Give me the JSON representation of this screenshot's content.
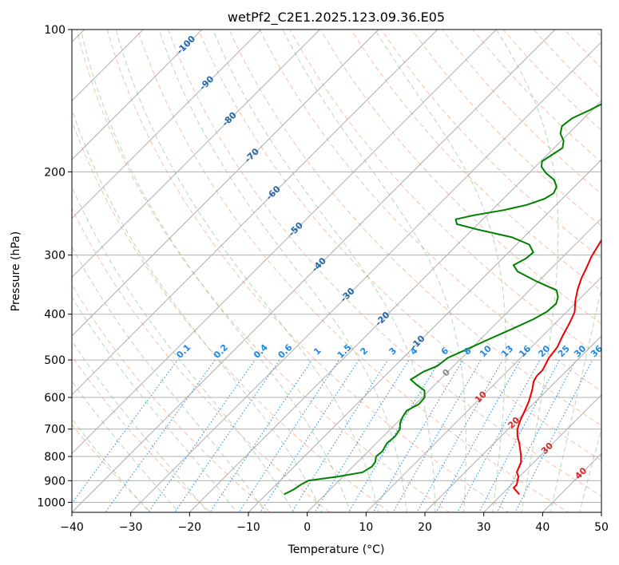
{
  "chart_data": {
    "type": "line",
    "title": "wetPf2_C2E1.2025.123.09.36.E05",
    "xlabel": "Temperature (°C)",
    "ylabel": "Pressure (hPa)",
    "xlim": [
      -40,
      50
    ],
    "ylim": [
      1050,
      100
    ],
    "y_scale": "log",
    "grid": true,
    "x_ticks": [
      "−40",
      "−30",
      "−20",
      "−10",
      "0",
      "10",
      "20",
      "30",
      "40",
      "50"
    ],
    "y_ticks": [
      "100",
      "200",
      "300",
      "400",
      "500",
      "600",
      "700",
      "800",
      "900",
      "1000"
    ],
    "colors": {
      "temperature": "#ee0000",
      "dewpoint": "#008000",
      "isotherm_grid": "#9a9a9a",
      "dry_adiabat": "#f4a582",
      "moist_adiabat": "#7fbf7f",
      "mixing_ratio": "#1e88e5",
      "isotherm_label": "#2166ac",
      "mixing_label": "#1e88e5",
      "moist_label": "#d62728",
      "zero_label": "#888888"
    },
    "series": [
      {
        "key": "temperature",
        "points": [
          [
            33.0,
            962
          ],
          [
            30.9,
            932
          ],
          [
            30.9,
            918
          ],
          [
            29.8,
            882
          ],
          [
            28.8,
            864
          ],
          [
            27.8,
            822
          ],
          [
            26.6,
            795
          ],
          [
            24.4,
            752
          ],
          [
            22.8,
            725
          ],
          [
            21.6,
            701
          ],
          [
            20.6,
            672
          ],
          [
            19.6,
            637
          ],
          [
            18.8,
            612
          ],
          [
            17.4,
            578
          ],
          [
            16.2,
            555
          ],
          [
            15.8,
            540
          ],
          [
            15.8,
            525
          ],
          [
            14.8,
            495
          ],
          [
            14.4,
            470
          ],
          [
            13.4,
            445
          ],
          [
            12.4,
            418
          ],
          [
            11.4,
            396
          ],
          [
            9.6,
            375
          ],
          [
            8.0,
            354
          ],
          [
            6.8,
            336
          ],
          [
            5.8,
            318
          ],
          [
            4.8,
            302
          ],
          [
            4.0,
            285
          ],
          [
            3.2,
            268
          ],
          [
            2.4,
            255
          ],
          [
            1.4,
            240
          ],
          [
            0.6,
            225
          ],
          [
            -0.4,
            212
          ],
          [
            -1.4,
            200
          ],
          [
            -2.6,
            188
          ],
          [
            -3.6,
            177
          ],
          [
            -4.8,
            166
          ],
          [
            -6.2,
            156
          ],
          [
            -7.4,
            146
          ],
          [
            -8.4,
            138
          ],
          [
            -9.0,
            131
          ],
          [
            -9.6,
            124
          ],
          [
            -10.0,
            117
          ],
          [
            -10.3,
            112
          ],
          [
            -10.6,
            106
          ],
          [
            -10.8,
            100
          ]
        ]
      },
      {
        "key": "dewpoint",
        "points": [
          [
            -7.0,
            962
          ],
          [
            -6.2,
            940
          ],
          [
            -5.8,
            918
          ],
          [
            -5.2,
            900
          ],
          [
            -0.8,
            882
          ],
          [
            2.6,
            864
          ],
          [
            3.2,
            840
          ],
          [
            3.0,
            822
          ],
          [
            2.2,
            800
          ],
          [
            2.4,
            780
          ],
          [
            1.8,
            750
          ],
          [
            2.0,
            725
          ],
          [
            1.6,
            700
          ],
          [
            0.6,
            680
          ],
          [
            0.0,
            660
          ],
          [
            -0.4,
            640
          ],
          [
            0.6,
            620
          ],
          [
            0.4,
            600
          ],
          [
            -0.8,
            580
          ],
          [
            -3.0,
            565
          ],
          [
            -5.0,
            550
          ],
          [
            -4.2,
            530
          ],
          [
            -2.8,
            515
          ],
          [
            -2.4,
            495
          ],
          [
            -0.2,
            470
          ],
          [
            1.6,
            450
          ],
          [
            3.6,
            430
          ],
          [
            5.6,
            410
          ],
          [
            6.6,
            395
          ],
          [
            6.8,
            380
          ],
          [
            6.0,
            368
          ],
          [
            4.6,
            356
          ],
          [
            -0.6,
            340
          ],
          [
            -5.2,
            325
          ],
          [
            -7.0,
            315
          ],
          [
            -6.0,
            305
          ],
          [
            -5.8,
            296
          ],
          [
            -7.8,
            285
          ],
          [
            -12.0,
            275
          ],
          [
            -19.0,
            265
          ],
          [
            -23.6,
            258
          ],
          [
            -24.6,
            252
          ],
          [
            -22.2,
            247
          ],
          [
            -18.0,
            241
          ],
          [
            -15.0,
            235
          ],
          [
            -13.0,
            228
          ],
          [
            -12.4,
            222
          ],
          [
            -13.0,
            215
          ],
          [
            -14.6,
            208
          ],
          [
            -17.2,
            201
          ],
          [
            -19.0,
            195
          ],
          [
            -19.8,
            190
          ],
          [
            -19.2,
            184
          ],
          [
            -18.6,
            178
          ],
          [
            -19.6,
            172
          ],
          [
            -21.4,
            166
          ],
          [
            -22.4,
            160
          ],
          [
            -22.0,
            154
          ],
          [
            -20.4,
            148
          ],
          [
            -19.0,
            142
          ],
          [
            -18.6,
            136
          ],
          [
            -18.6,
            130
          ],
          [
            -18.2,
            124
          ],
          [
            -18.0,
            118
          ],
          [
            -17.2,
            112
          ],
          [
            -16.4,
            106
          ],
          [
            -15.4,
            100
          ]
        ]
      }
    ],
    "isotherm_labels": [
      {
        "t": -100,
        "p": 108,
        "text": "-100"
      },
      {
        "t": -90,
        "p": 130,
        "text": "-90"
      },
      {
        "t": -80,
        "p": 155,
        "text": "-80"
      },
      {
        "t": -70,
        "p": 185,
        "text": "-70"
      },
      {
        "t": -60,
        "p": 222,
        "text": "-60"
      },
      {
        "t": -50,
        "p": 265,
        "text": "-50"
      },
      {
        "t": -40,
        "p": 315,
        "text": "-40"
      },
      {
        "t": -30,
        "p": 365,
        "text": "-30"
      },
      {
        "t": -20,
        "p": 410,
        "text": "-20"
      },
      {
        "t": -10,
        "p": 460,
        "text": "-10"
      }
    ],
    "mixing_ratio_labels": [
      "0.1",
      "0.2",
      "0.4",
      "0.6",
      "1",
      "1.5",
      "2",
      "3",
      "4",
      "6",
      "8",
      "10",
      "13",
      "16",
      "20",
      "25",
      "30",
      "36"
    ],
    "mixing_ratio_values": [
      0.1,
      0.2,
      0.4,
      0.6,
      1,
      1.5,
      2,
      3,
      4,
      6,
      8,
      10,
      13,
      16,
      20,
      25,
      30,
      36
    ],
    "mixing_ratio_label_pressure": 480,
    "moist_adiabat_labels": [
      {
        "t": 0,
        "p": 533,
        "text": "0"
      },
      {
        "t": 10,
        "p": 600,
        "text": "10"
      },
      {
        "t": 20,
        "p": 680,
        "text": "20"
      },
      {
        "t": 30,
        "p": 770,
        "text": "30"
      },
      {
        "t": 40,
        "p": 870,
        "text": "40"
      }
    ]
  }
}
